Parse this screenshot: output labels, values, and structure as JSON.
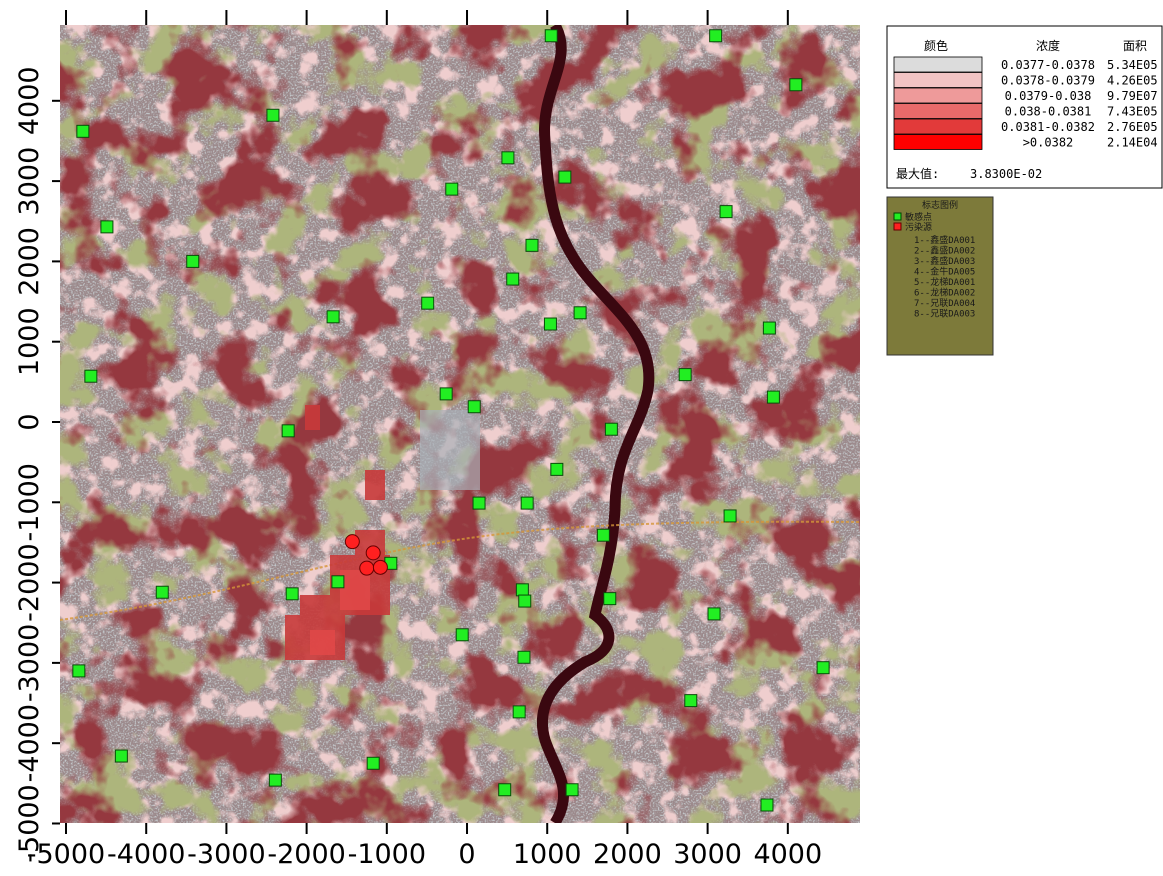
{
  "x_axis": {
    "lim": [
      -5075,
      4900
    ],
    "ticks": [
      -5000,
      -4000,
      -3000,
      -2000,
      -1000,
      0,
      1000,
      2000,
      3000,
      4000
    ]
  },
  "y_axis": {
    "lim": [
      -4994,
      4944
    ],
    "ticks": [
      -5000,
      -4000,
      -3000,
      -2000,
      -1000,
      0,
      1000,
      2000,
      3000,
      4000
    ]
  },
  "sensitive_points": {
    "color": "#22ee22",
    "x": [
      1050,
      3100,
      4100,
      -4790,
      -2420,
      510,
      1220,
      -190,
      3230,
      -4490,
      810,
      -3420,
      570,
      -490,
      -1670,
      1040,
      1410,
      3770,
      -4690,
      2720,
      -260,
      90,
      3820,
      -2230,
      1800,
      1120,
      150,
      750,
      3280,
      1700,
      -950,
      -1610,
      -3800,
      -2180,
      690,
      720,
      1780,
      3080,
      -60,
      710,
      4440,
      -4840,
      2790,
      650,
      -4310,
      -1170,
      -2390,
      470,
      1310,
      3740
    ],
    "y": [
      4810,
      4810,
      4200,
      3620,
      3820,
      3290,
      3050,
      2900,
      2620,
      2430,
      2200,
      2000,
      1780,
      1480,
      1310,
      1220,
      1360,
      1170,
      570,
      590,
      350,
      190,
      310,
      -110,
      -90,
      -590,
      -1010,
      -1010,
      -1170,
      -1410,
      -1760,
      -1990,
      -2120,
      -2140,
      -2090,
      -2230,
      -2200,
      -2390,
      -2650,
      -2930,
      -3060,
      -3100,
      -3470,
      -3610,
      -4160,
      -4250,
      -4460,
      -4580,
      -4580,
      -4770
    ]
  },
  "pollution_sources": {
    "color": "#ff2020",
    "x": [
      -1430,
      -1170,
      -1250,
      -1080
    ],
    "y": [
      -1490,
      -1630,
      -1820,
      -1810
    ]
  },
  "concentration_legend": {
    "headers": [
      "颜色",
      "浓度",
      "面积"
    ],
    "rows": [
      {
        "color": "#dcdcdc",
        "range": "0.0377-0.0378",
        "area": "5.34E05"
      },
      {
        "color": "#f2c4c4",
        "range": "0.0378-0.0379",
        "area": "4.26E05"
      },
      {
        "color": "#ee9a9a",
        "range": "0.0379-0.038",
        "area": "9.79E07"
      },
      {
        "color": "#e86a6a",
        "range": "0.038-0.0381",
        "area": "7.43E05"
      },
      {
        "color": "#e23a3a",
        "range": "0.0381-0.0382",
        "area": "2.76E05"
      },
      {
        "color": "#ff0000",
        "range": ">0.0382",
        "area": "2.14E04"
      }
    ],
    "max_label": "最大值:",
    "max_value": "3.8300E-02"
  },
  "symbol_legend": {
    "title": "标志图例",
    "sensitive_label": "敏感点",
    "source_label": "污染源",
    "items": [
      "1--鑫盛DA001",
      "2--鑫盛DA002",
      "3--鑫盛DA003",
      "4--金牛DA005",
      "5--龙梯DA001",
      "6--龙梯DA002",
      "7--兄联DA004",
      "8--兄联DA003"
    ]
  }
}
